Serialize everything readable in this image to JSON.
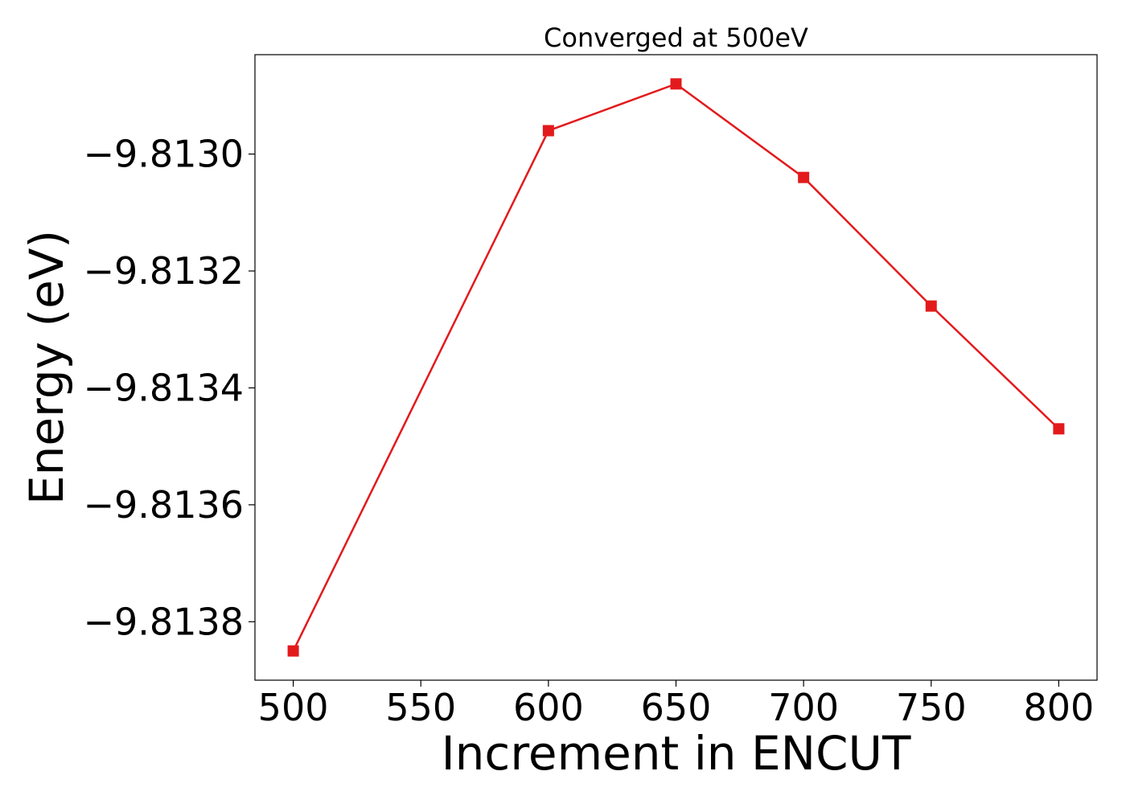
{
  "chart_data": {
    "type": "line",
    "title": "Converged at 500eV",
    "xlabel": "Increment in ENCUT",
    "ylabel": "Energy (eV)",
    "x": [
      500,
      600,
      650,
      700,
      750,
      800
    ],
    "series": [
      {
        "values": [
          -9.81385,
          -9.81296,
          -9.81288,
          -9.81304,
          -9.81326,
          -9.81347
        ]
      }
    ],
    "xlim": [
      485,
      815
    ],
    "ylim": [
      -9.8139,
      -9.81283
    ],
    "x_ticks": [
      500,
      550,
      600,
      650,
      700,
      750,
      800
    ],
    "x_tick_labels": [
      "500",
      "550",
      "600",
      "650",
      "700",
      "750",
      "800"
    ],
    "y_ticks": [
      -9.8138,
      -9.8136,
      -9.8134,
      -9.8132,
      -9.813
    ],
    "y_tick_labels": [
      "−9.8138",
      "−9.8136",
      "−9.8134",
      "−9.8132",
      "−9.8130"
    ],
    "grid": false,
    "line_color": "#e31a1c",
    "marker": "square",
    "legend": "none"
  }
}
